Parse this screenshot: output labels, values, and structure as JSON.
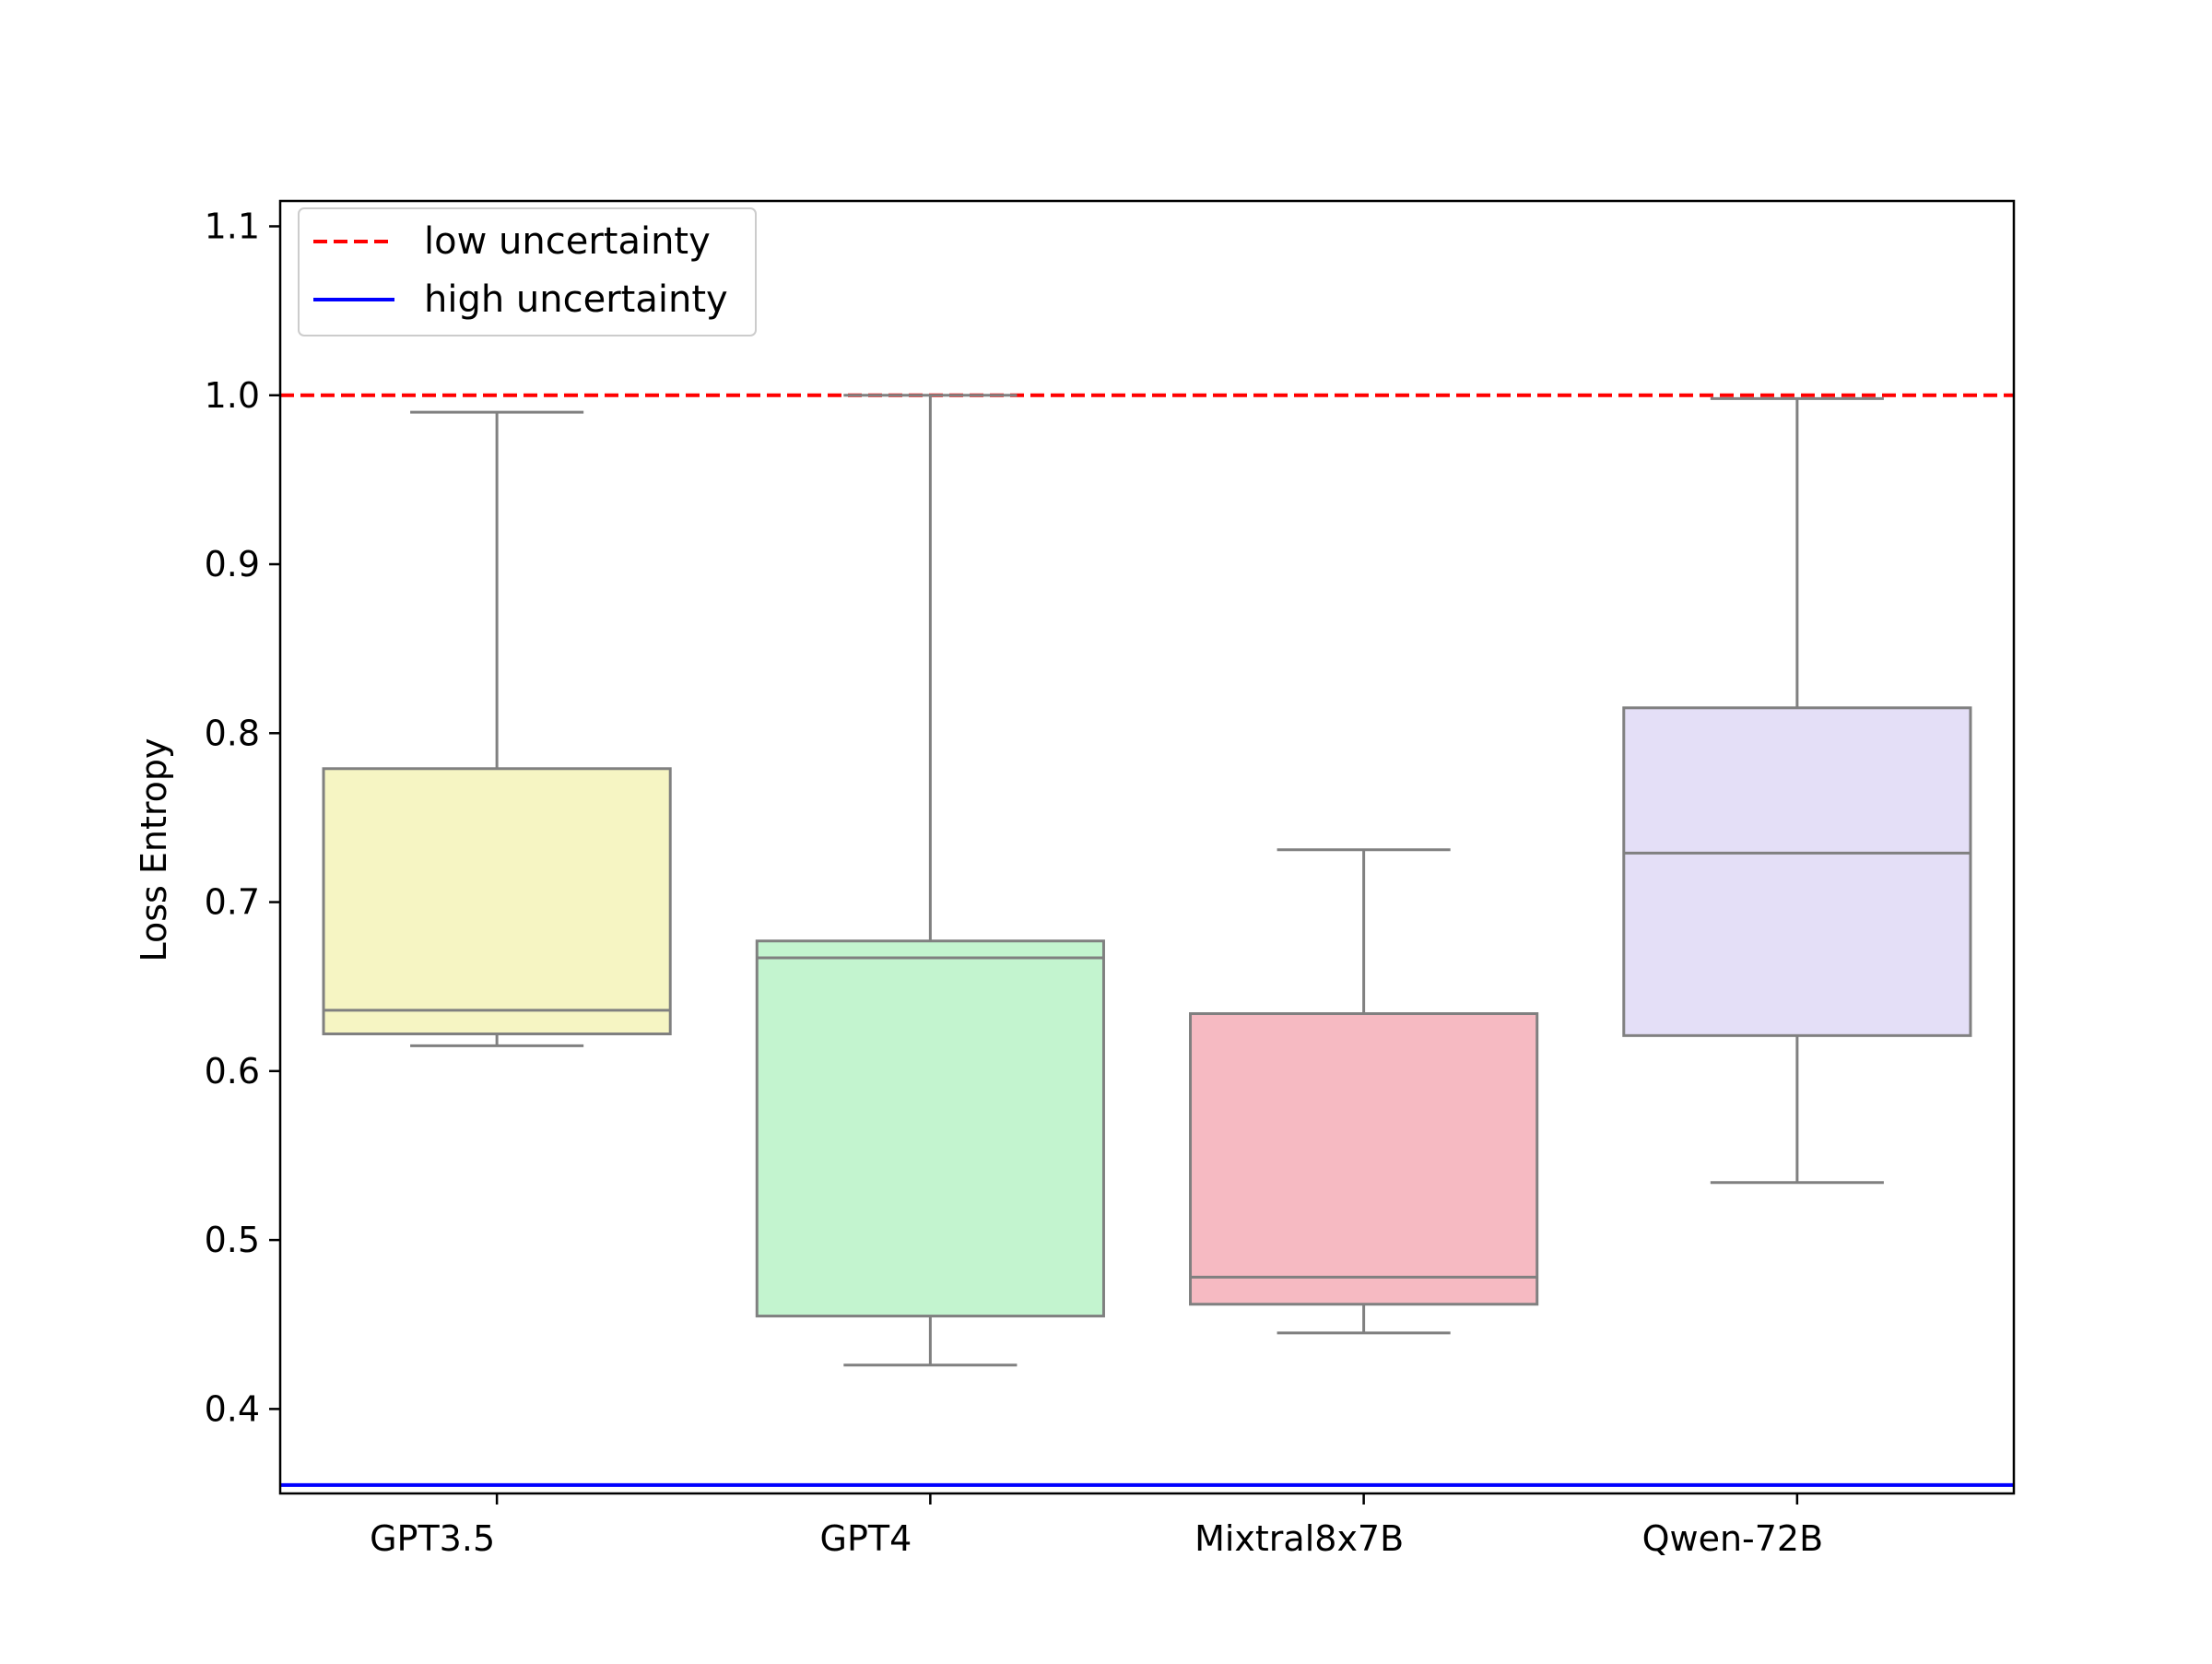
{
  "chart_data": {
    "type": "box",
    "title": "",
    "xlabel": "",
    "ylabel": "Loss Entropy",
    "ylim": [
      0.35,
      1.115
    ],
    "yticks": [
      "0.4",
      "0.5",
      "0.6",
      "0.7",
      "0.8",
      "0.9",
      "1.0",
      "1.1"
    ],
    "categories": [
      "GPT3.5",
      "GPT4",
      "Mixtral8x7B",
      "Qwen-72B"
    ],
    "boxes": [
      {
        "name": "GPT3.5",
        "whisker_low": 0.615,
        "q1": 0.622,
        "median": 0.636,
        "q3": 0.779,
        "whisker_high": 0.99,
        "color": "#f6f5c3"
      },
      {
        "name": "GPT4",
        "whisker_low": 0.426,
        "q1": 0.455,
        "median": 0.667,
        "q3": 0.677,
        "whisker_high": 1.0,
        "color": "#c3f4cf"
      },
      {
        "name": "Mixtral8x7B",
        "whisker_low": 0.445,
        "q1": 0.462,
        "median": 0.478,
        "q3": 0.634,
        "whisker_high": 0.731,
        "color": "#f6bac2"
      },
      {
        "name": "Qwen-72B",
        "whisker_low": 0.534,
        "q1": 0.621,
        "median": 0.729,
        "q3": 0.815,
        "whisker_high": 0.998,
        "color": "#e4dff7"
      }
    ],
    "reference_lines": [
      {
        "name": "low uncertainty",
        "value": 1.0,
        "style": "dashed",
        "color": "#ff0000"
      },
      {
        "name": "high uncertainty",
        "value": 0.355,
        "style": "solid",
        "color": "#0000ff"
      }
    ],
    "box_edge_color": "#808080",
    "legend_placement": "top-left",
    "grid": false
  }
}
